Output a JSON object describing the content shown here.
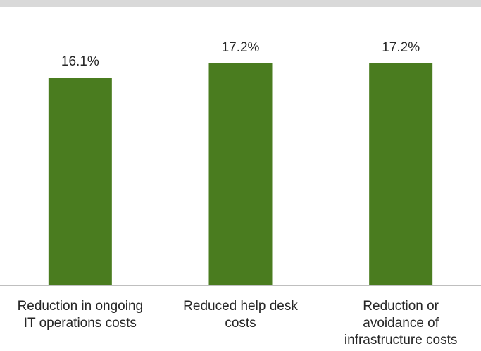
{
  "colors": {
    "bar": "#4a7c1f",
    "top_strip": "#d9d9d9",
    "axis": "#bfbfbf",
    "text": "#262626"
  },
  "chart_data": {
    "type": "bar",
    "categories": [
      "Reduction in ongoing\nIT operations costs",
      "Reduced help desk\ncosts",
      "Reduction or\navoidance of\ninfrastructure costs"
    ],
    "values": [
      16.1,
      17.2,
      17.2
    ],
    "data_labels": [
      "16.1%",
      "17.2%",
      "17.2%"
    ],
    "value_unit": "%",
    "ylim": [
      0,
      20.2
    ],
    "grid": false,
    "legend": "none"
  }
}
